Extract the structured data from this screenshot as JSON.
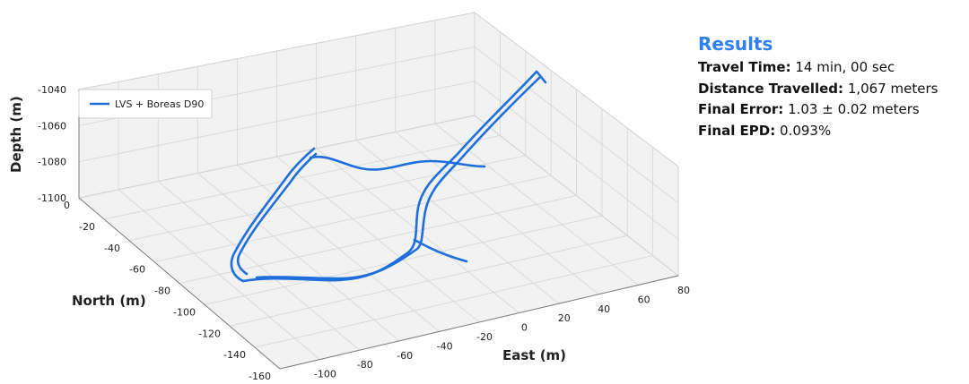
{
  "chart_data": {
    "type": "line-3d",
    "xlabel": "East (m)",
    "ylabel": "North (m)",
    "zlabel": "Depth (m)",
    "xticks": [
      "-100",
      "-80",
      "-60",
      "-40",
      "-20",
      "0",
      "20",
      "40",
      "60",
      "80"
    ],
    "yticks": [
      "0",
      "-20",
      "-40",
      "-60",
      "-80",
      "-100",
      "-120",
      "-140",
      "-160"
    ],
    "zticks": [
      "-1040",
      "-1060",
      "-1080",
      "-1100"
    ],
    "xlim": [
      -120,
      80
    ],
    "ylim": [
      -160,
      0
    ],
    "zlim": [
      -1100,
      -1040
    ],
    "grid": true,
    "legend_position": "upper-left",
    "series": [
      {
        "name": "LVS + Boreas D90",
        "color": "#1f6fdb"
      }
    ]
  },
  "results": {
    "title": "Results",
    "title_color": "#2f80ed",
    "lines": [
      {
        "label": "Travel Time:",
        "value": "14 min, 00 sec"
      },
      {
        "label": "Distance Travelled:",
        "value": "1,067 meters"
      },
      {
        "label": "Final Error:",
        "value": "1.03 ± 0.02 meters"
      },
      {
        "label": "Final EPD:",
        "value": "0.093%"
      }
    ]
  }
}
